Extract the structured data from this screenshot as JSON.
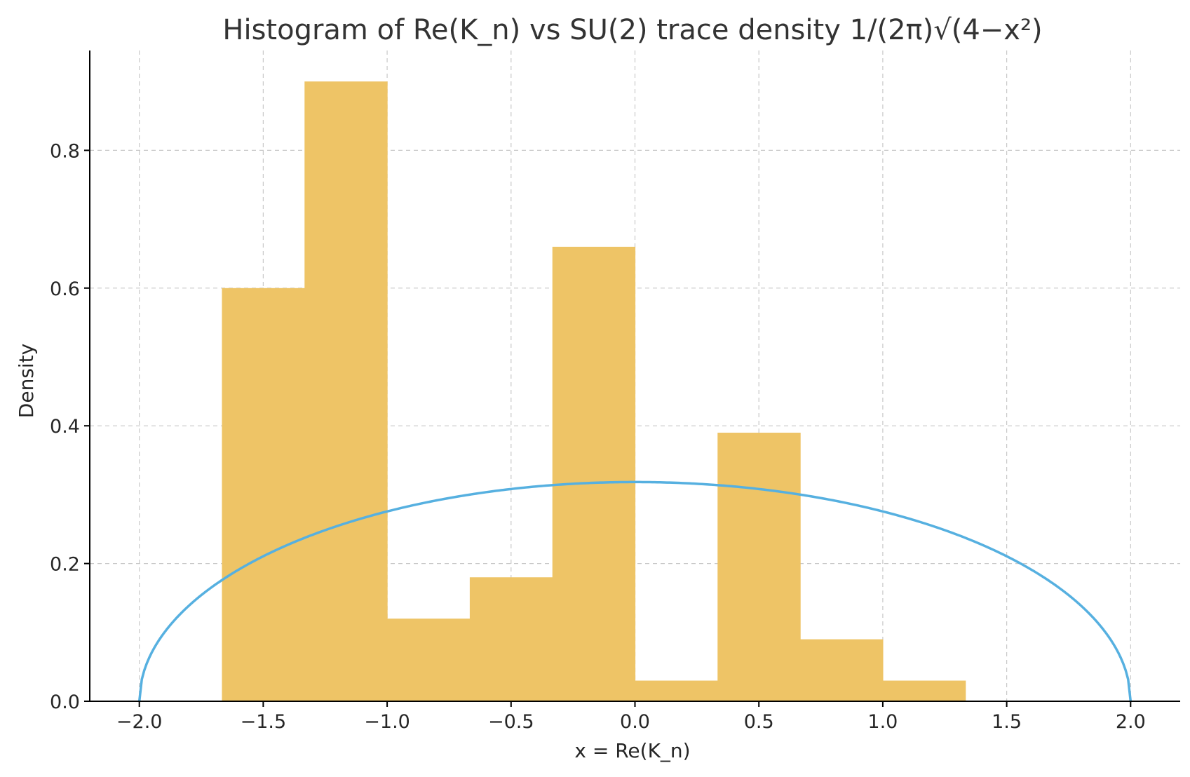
{
  "chart_data": {
    "type": "bar",
    "title": "Histogram of Re(K_n) vs SU(2) trace density 1/(2π)√(4−x²)",
    "xlabel": "x = Re(K_n)",
    "ylabel": "Density",
    "xlim": [
      -2.2,
      2.2
    ],
    "ylim": [
      0,
      0.945
    ],
    "x_ticks": [
      -2.0,
      -1.5,
      -1.0,
      -0.5,
      0.0,
      0.5,
      1.0,
      1.5,
      2.0
    ],
    "x_tick_labels": [
      "−2.0",
      "−1.5",
      "−1.0",
      "−0.5",
      "0.0",
      "0.5",
      "1.0",
      "1.5",
      "2.0"
    ],
    "y_ticks": [
      0.0,
      0.2,
      0.4,
      0.6,
      0.8
    ],
    "y_tick_labels": [
      "0.0",
      "0.2",
      "0.4",
      "0.6",
      "0.8"
    ],
    "grid": true,
    "histogram": {
      "bin_edges": [
        -1.6667,
        -1.3333,
        -1.0,
        -0.6667,
        -0.3333,
        0.0,
        0.3333,
        0.6667,
        1.0,
        1.3333
      ],
      "values": [
        0.6,
        0.9,
        0.12,
        0.18,
        0.66,
        0.03,
        0.39,
        0.09,
        0.03
      ],
      "color": "#eec466"
    },
    "curve": {
      "function": "1/(2π)√(4−x²)",
      "domain": [
        -2.0,
        2.0
      ],
      "color": "#56b0e0"
    }
  }
}
